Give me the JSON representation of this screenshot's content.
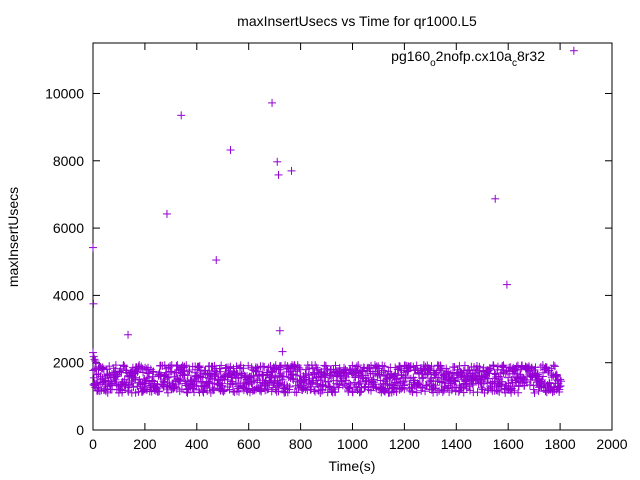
{
  "chart_data": {
    "type": "scatter",
    "title": "maxInsertUsecs vs Time for qr1000.L5",
    "xlabel": "Time(s)",
    "ylabel": "maxInsertUsecs",
    "xlim": [
      0,
      2000
    ],
    "ylim": [
      0,
      11500
    ],
    "xticks": [
      0,
      200,
      400,
      600,
      800,
      1000,
      1200,
      1400,
      1600,
      1800,
      2000
    ],
    "yticks": [
      0,
      2000,
      4000,
      6000,
      8000,
      10000
    ],
    "grid": false,
    "legend_position": "top-right",
    "marker": "plus",
    "color": "#9400d3",
    "series": [
      {
        "name_parts": [
          "pg160",
          "o",
          "2nofp.cx10a",
          "c",
          "8r32"
        ],
        "outliers": [
          {
            "x": 0,
            "y": 5420
          },
          {
            "x": 2,
            "y": 3750
          },
          {
            "x": 135,
            "y": 2830
          },
          {
            "x": 285,
            "y": 6420
          },
          {
            "x": 340,
            "y": 9350
          },
          {
            "x": 475,
            "y": 5050
          },
          {
            "x": 530,
            "y": 8320
          },
          {
            "x": 690,
            "y": 9720
          },
          {
            "x": 710,
            "y": 7970
          },
          {
            "x": 715,
            "y": 7580
          },
          {
            "x": 720,
            "y": 2950
          },
          {
            "x": 730,
            "y": 2330
          },
          {
            "x": 765,
            "y": 7700
          },
          {
            "x": 1550,
            "y": 6870
          },
          {
            "x": 1595,
            "y": 4320
          }
        ],
        "band": {
          "x_start": 0,
          "x_end": 1800,
          "x_step": 4,
          "level": 1550,
          "spread_upper": 380,
          "spread_lower": 450,
          "initial": [
            {
              "x": 0,
              "y": 2300
            },
            {
              "x": 3,
              "y": 2180
            },
            {
              "x": 6,
              "y": 2100
            },
            {
              "x": 9,
              "y": 2050
            },
            {
              "x": 12,
              "y": 1980
            }
          ]
        }
      }
    ],
    "legend_marker_point": {
      "x": 1853,
      "y": 11270
    }
  }
}
